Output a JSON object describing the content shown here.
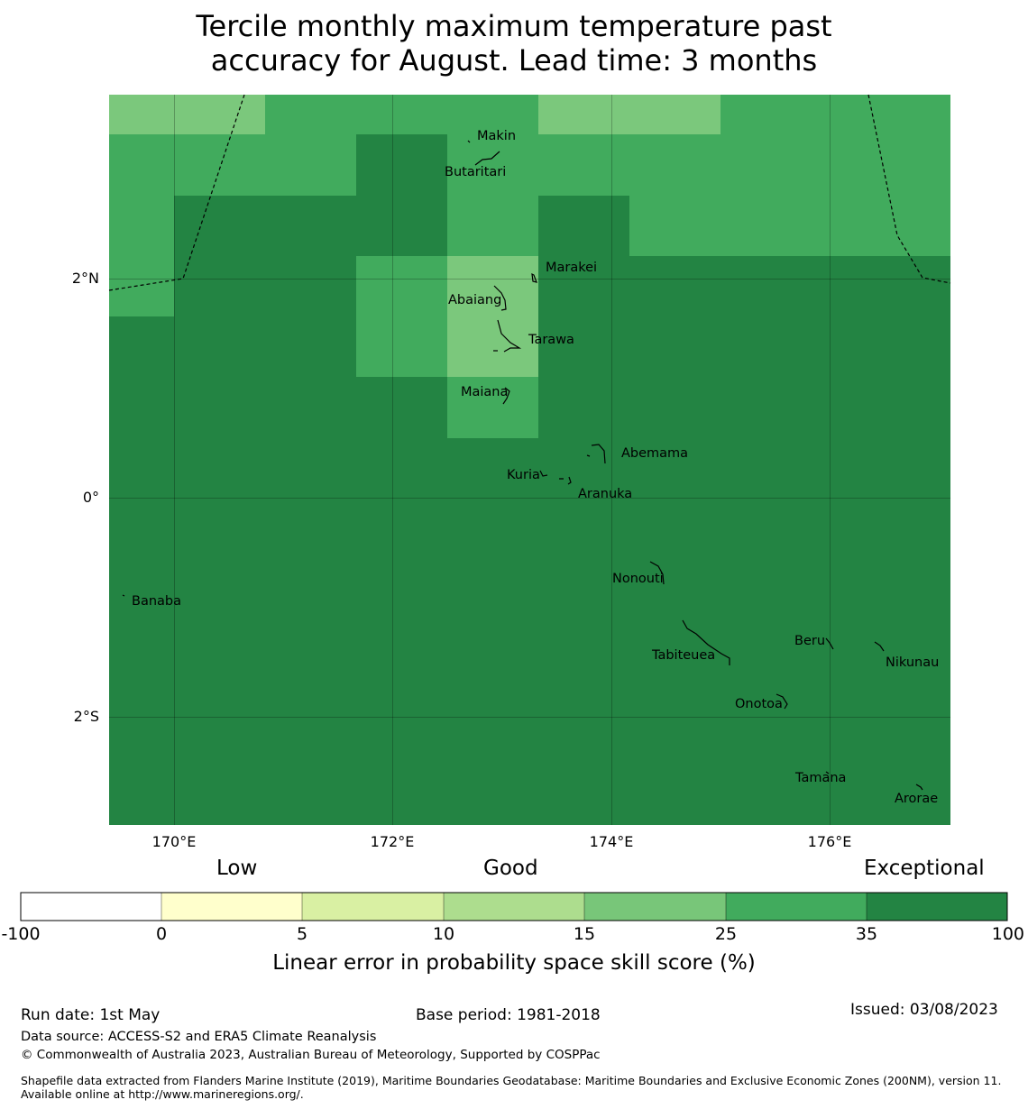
{
  "title": {
    "line1": "Tercile monthly maximum temperature past",
    "line2": "accuracy for August. Lead time: 3 months"
  },
  "map": {
    "lon_labels": [
      "170°E",
      "172°E",
      "174°E",
      "176°E"
    ],
    "lat_labels": [
      "2°N",
      "0°",
      "2°S"
    ],
    "places": [
      {
        "name": "Makin"
      },
      {
        "name": "Butaritari"
      },
      {
        "name": "Marakei"
      },
      {
        "name": "Abaiang"
      },
      {
        "name": "Tarawa"
      },
      {
        "name": "Maiana"
      },
      {
        "name": "Abemama"
      },
      {
        "name": "Kuria"
      },
      {
        "name": "Aranuka"
      },
      {
        "name": "Banaba"
      },
      {
        "name": "Nonouti"
      },
      {
        "name": "Beru"
      },
      {
        "name": "Tabiteuea"
      },
      {
        "name": "Nikunau"
      },
      {
        "name": "Onotoa"
      },
      {
        "name": "Tamana"
      },
      {
        "name": "Arorae"
      }
    ],
    "cell_colors": {
      "score_15_25": "#7bc87c",
      "score_25_35": "#41ab5d",
      "score_35_100": "#238443"
    }
  },
  "colorbar": {
    "categories": [
      "Low",
      "Good",
      "Exceptional"
    ],
    "ticks": [
      "-100",
      "0",
      "5",
      "10",
      "15",
      "25",
      "35",
      "100"
    ],
    "colors": [
      "#ffffff",
      "#ffffcc",
      "#d9f0a3",
      "#addd8e",
      "#78c679",
      "#41ab5d",
      "#238443"
    ],
    "label": "Linear error in probability space skill score (%)"
  },
  "footer": {
    "run_date": "Run date: 1st May",
    "base_period": "Base period: 1981-2018",
    "issued": "Issued: 03/08/2023",
    "data_source": "Data source: ACCESS-S2 and ERA5 Climate Reanalysis",
    "copyright": "© Commonwealth of Australia 2023, Australian Bureau of Meteorology, Supported by COSPPac",
    "shapefile": "Shapefile data extracted from Flanders Marine Institute (2019), Maritime Boundaries Geodatabase: Maritime Boundaries and Exclusive Economic Zones (200NM), version 11. Available online at http://www.marineregions.org/."
  }
}
